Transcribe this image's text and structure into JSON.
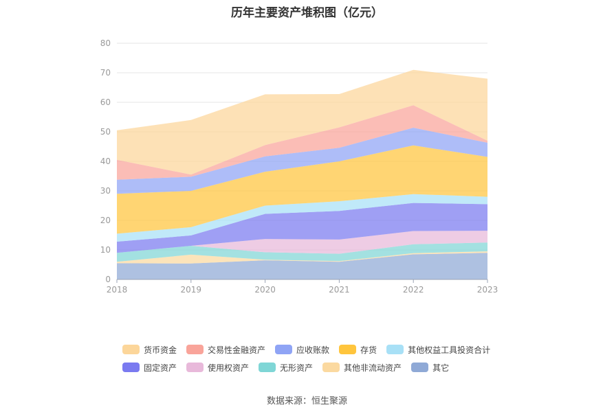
{
  "chart_data": {
    "type": "area",
    "title": "历年主要资产堆积图（亿元）",
    "x": [
      "2018",
      "2019",
      "2020",
      "2021",
      "2022",
      "2023"
    ],
    "ylim": [
      0,
      80
    ],
    "yticks": [
      "0",
      "10",
      "20",
      "30",
      "40",
      "50",
      "60",
      "70",
      "80"
    ],
    "stacked": true,
    "grid": true,
    "legend_position": "bottom",
    "series": [
      {
        "name": "其它",
        "color": "#8fa9d6",
        "values": [
          5.5,
          5.4,
          6.5,
          6.0,
          8.5,
          9.0
        ]
      },
      {
        "name": "其他非流动资产",
        "color": "#fbd9a0",
        "values": [
          0.5,
          3.0,
          0.2,
          0.2,
          0.4,
          0.5
        ]
      },
      {
        "name": "无形资产",
        "color": "#7fd6d6",
        "values": [
          3.0,
          3.0,
          2.5,
          2.5,
          3.0,
          3.0
        ]
      },
      {
        "name": "使用权资产",
        "color": "#e8b9da",
        "values": [
          0,
          0,
          4.5,
          4.8,
          4.5,
          4.0
        ]
      },
      {
        "name": "固定资产",
        "color": "#7a7af0",
        "values": [
          3.8,
          3.5,
          8.5,
          9.7,
          9.5,
          9.0
        ]
      },
      {
        "name": "其他权益工具投资合计",
        "color": "#a8e0f6",
        "values": [
          2.7,
          2.8,
          2.8,
          3.3,
          3.0,
          2.5
        ]
      },
      {
        "name": "存货",
        "color": "#ffc53d",
        "values": [
          13.5,
          12.3,
          11.5,
          13.5,
          16.5,
          13.5
        ]
      },
      {
        "name": "应收账款",
        "color": "#8fa4f5",
        "values": [
          4.8,
          4.8,
          5.2,
          4.6,
          6.0,
          4.8
        ]
      },
      {
        "name": "交易性金融资产",
        "color": "#f9a49a",
        "values": [
          6.7,
          0.7,
          3.8,
          6.9,
          7.6,
          0.7
        ]
      },
      {
        "name": "货币资金",
        "color": "#fcd69a",
        "values": [
          10.0,
          18.5,
          17.2,
          11.3,
          12.0,
          21.0
        ]
      }
    ]
  },
  "legend": {
    "rows": [
      [
        {
          "label": "货币资金",
          "color": "#fcd69a"
        },
        {
          "label": "交易性金融资产",
          "color": "#f9a49a"
        },
        {
          "label": "应收账款",
          "color": "#8fa4f5"
        },
        {
          "label": "存货",
          "color": "#ffc53d"
        },
        {
          "label": "其他权益工具投资合计",
          "color": "#a8e0f6"
        }
      ],
      [
        {
          "label": "固定资产",
          "color": "#7a7af0"
        },
        {
          "label": "使用权资产",
          "color": "#e8b9da"
        },
        {
          "label": "无形资产",
          "color": "#7fd6d6"
        },
        {
          "label": "其他非流动资产",
          "color": "#fbd9a0"
        },
        {
          "label": "其它",
          "color": "#8fa9d6"
        }
      ]
    ]
  },
  "source": "数据来源：恒生聚源"
}
